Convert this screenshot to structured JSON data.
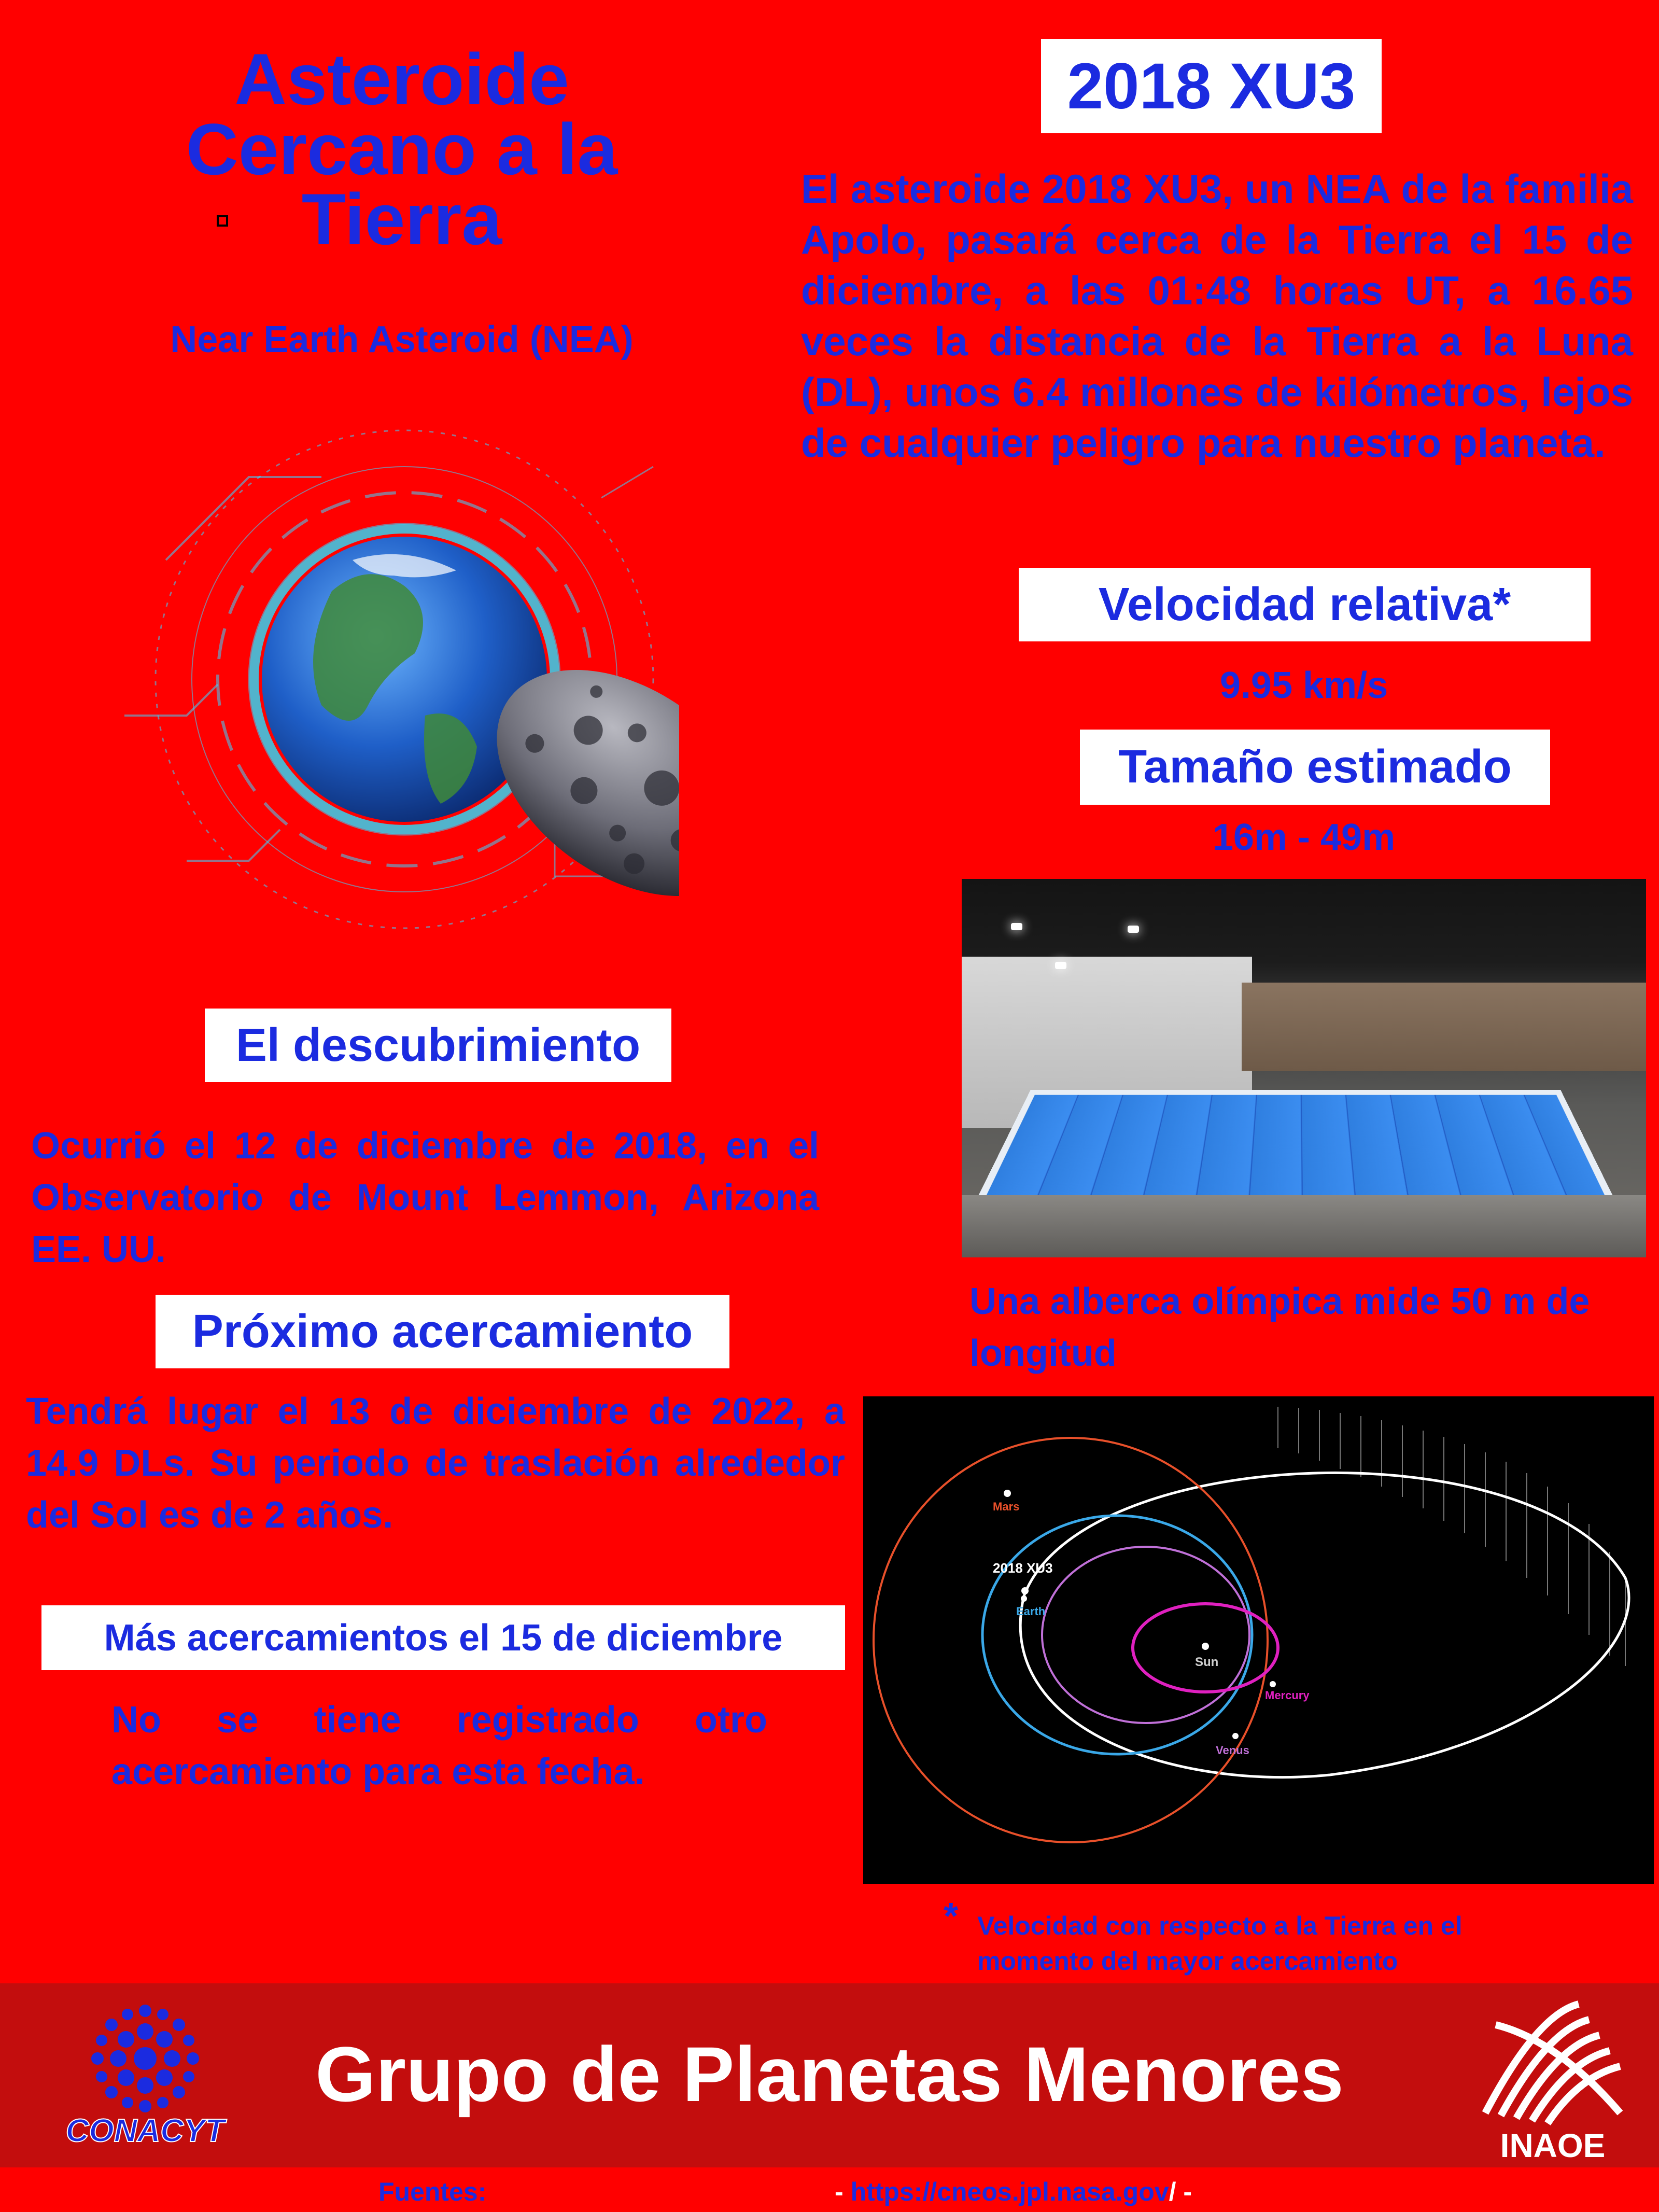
{
  "header": {
    "title_line1": "Asteroide",
    "title_line2": "Cercano a la",
    "title_line3": "Tierra",
    "subtitle": "Near Earth Asteroid (NEA)"
  },
  "asteroid": {
    "name": "2018 XU3",
    "description": "El asteroide 2018 XU3, un NEA de la familia Apolo, pasará cerca de la Tierra el 15 de diciembre, a las 01:48 horas UT, a 16.65 veces la distancia de la Tierra a la Luna (DL), unos 6.4 millones de kilómetros, lejos de cualquier peligro para nuestro planeta."
  },
  "velocity": {
    "label": "Velocidad relativa*",
    "value": "9.95 km/s"
  },
  "size": {
    "label": "Tamaño estimado",
    "value": "16m - 49m"
  },
  "pool": {
    "caption": "Una alberca olímpica mide 50 m de longitud"
  },
  "discovery": {
    "label": "El descubrimiento",
    "text": "Ocurrió el 12 de diciembre de 2018, en el Observatorio de Mount Lemmon, Arizona EE. UU."
  },
  "next_approach": {
    "label": "Próximo acercamiento",
    "text": "Tendrá lugar el 13 de diciembre de 2022, a 14.9 DLs. Su periodo de traslación alrededor del Sol es de 2 años."
  },
  "more_approaches": {
    "label": "Más acercamientos el 15 de diciembre",
    "text": "No se tiene registrado otro acercamiento para esta fecha."
  },
  "orbit_diagram": {
    "labels": {
      "mars": "Mars",
      "asteroid": "2018 XU3",
      "earth": "Earth",
      "sun": "Sun",
      "mercury": "Mercury",
      "venus": "Venus"
    },
    "colors": {
      "mars": "#e8502a",
      "earth": "#3aa8e8",
      "venus": "#c070d8",
      "mercury": "#e020c0",
      "asteroid": "#ffffff"
    }
  },
  "footnote": {
    "marker": "*",
    "text": "Velocidad con respecto a la Tierra en el momento del mayor acercamiento"
  },
  "footer": {
    "title": "Grupo de Planetas Menores",
    "logo_left": "CONACYT",
    "logo_right": "INAOE",
    "sources_label": "Fuentes:",
    "sources_url": "https://cneos.jpl.nasa.gov",
    "dash_left": "-",
    "slash": "/",
    "dash_right": "-"
  },
  "colors": {
    "background": "#ff0000",
    "text": "#1b2be0",
    "footer": "#c30d0d"
  }
}
